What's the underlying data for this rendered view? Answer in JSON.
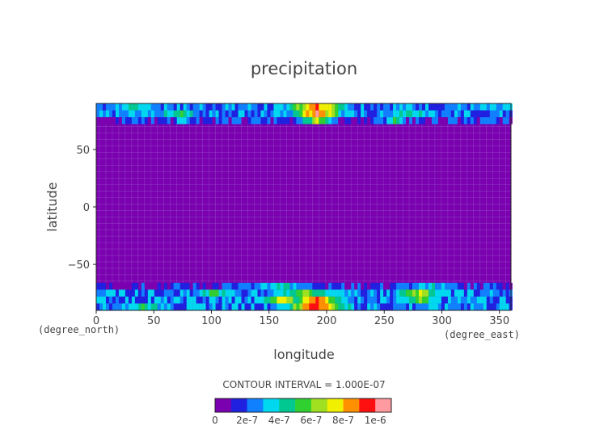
{
  "chart_data": {
    "type": "heatmap",
    "title": "precipitation",
    "xlabel": "longitude",
    "ylabel": "latitude",
    "x_unit": "(degree_east)",
    "y_unit": "(degree_north)",
    "xlim": [
      0,
      360
    ],
    "ylim": [
      -90,
      90
    ],
    "x_ticks": [
      "0",
      "50",
      "100",
      "150",
      "200",
      "250",
      "300",
      "350"
    ],
    "y_ticks": [
      "50",
      "0",
      "-50"
    ],
    "contour_interval_text": "CONTOUR INTERVAL = 1.000E-07",
    "colorbar": {
      "levels": [
        0,
        1e-07,
        2e-07,
        3e-07,
        4e-07,
        5e-07,
        6e-07,
        7e-07,
        8e-07,
        9e-07,
        1e-06
      ],
      "colors": [
        "#7a00b0",
        "#2020e0",
        "#1080ff",
        "#00d8f0",
        "#00c890",
        "#30d030",
        "#a0e020",
        "#f0f000",
        "#ff9000",
        "#ff1010",
        "#ff9aa0"
      ],
      "tick_labels": [
        "0",
        "2e-7",
        "4e-7",
        "6e-7",
        "8e-7",
        "1e-6"
      ]
    },
    "bands": [
      {
        "lat_range": [
          -60,
          60
        ],
        "value": 0
      },
      {
        "region": "north polar",
        "lat_range": [
          65,
          90
        ],
        "peak_lon": 190,
        "peak_value": 9e-07
      },
      {
        "region": "south polar",
        "lat_range": [
          -90,
          -60
        ],
        "peak_lon": 190,
        "peak_value": 9e-07
      }
    ]
  }
}
